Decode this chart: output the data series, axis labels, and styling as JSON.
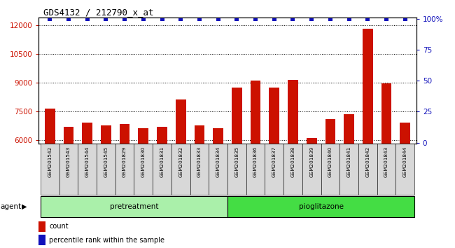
{
  "title": "GDS4132 / 212790_x_at",
  "samples": [
    "GSM201542",
    "GSM201543",
    "GSM201544",
    "GSM201545",
    "GSM201829",
    "GSM201830",
    "GSM201831",
    "GSM201832",
    "GSM201833",
    "GSM201834",
    "GSM201835",
    "GSM201836",
    "GSM201837",
    "GSM201838",
    "GSM201839",
    "GSM201840",
    "GSM201841",
    "GSM201842",
    "GSM201843",
    "GSM201844"
  ],
  "counts": [
    7650,
    6700,
    6900,
    6750,
    6850,
    6600,
    6700,
    8100,
    6750,
    6600,
    8750,
    9100,
    8750,
    9150,
    6100,
    7100,
    7350,
    11800,
    8950,
    6900
  ],
  "percentile": [
    100,
    100,
    100,
    100,
    100,
    100,
    100,
    100,
    100,
    100,
    100,
    100,
    100,
    100,
    100,
    100,
    100,
    100,
    100,
    100
  ],
  "pretreatment_count": 10,
  "pioglitazone_count": 10,
  "ylim_left": [
    5800,
    12400
  ],
  "ylim_right": [
    -1,
    101
  ],
  "yticks_left": [
    6000,
    7500,
    9000,
    10500,
    12000
  ],
  "yticks_right": [
    0,
    25,
    50,
    75,
    100
  ],
  "bar_color": "#cc1100",
  "percentile_color": "#1111bb",
  "pretreatment_color": "#aaf0aa",
  "pioglitazone_color": "#44dd44",
  "agent_label": "agent",
  "pretreatment_label": "pretreatment",
  "pioglitazone_label": "pioglitazone",
  "legend_count_label": "count",
  "legend_pct_label": "percentile rank within the sample",
  "bar_width": 0.55,
  "background_box_color": "#d8d8d8"
}
